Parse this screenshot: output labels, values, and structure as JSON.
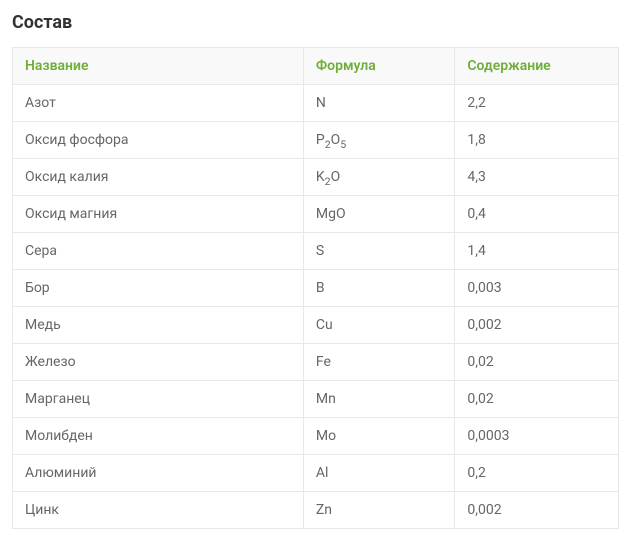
{
  "heading": "Состав",
  "table": {
    "columns": [
      {
        "label": "Название"
      },
      {
        "label": "Формула"
      },
      {
        "label": "Содержание"
      }
    ],
    "rows": [
      {
        "name": "Азот",
        "formula_html": "N",
        "content": "2,2"
      },
      {
        "name": "Оксид фосфора",
        "formula_html": "P<sub>2</sub>O<sub>5</sub>",
        "content": "1,8"
      },
      {
        "name": "Оксид калия",
        "formula_html": "K<sub>2</sub>O",
        "content": "4,3"
      },
      {
        "name": "Оксид магния",
        "formula_html": "MgO",
        "content": "0,4"
      },
      {
        "name": "Сера",
        "formula_html": "S",
        "content": "1,4"
      },
      {
        "name": "Бор",
        "formula_html": "B",
        "content": "0,003"
      },
      {
        "name": "Медь",
        "formula_html": "Cu",
        "content": "0,002"
      },
      {
        "name": "Железо",
        "formula_html": "Fe",
        "content": "0,02"
      },
      {
        "name": "Марганец",
        "formula_html": "Mn",
        "content": "0,02"
      },
      {
        "name": "Молибден",
        "formula_html": "Mo",
        "content": "0,0003"
      },
      {
        "name": "Алюминий",
        "formula_html": "Al",
        "content": "0,2"
      },
      {
        "name": "Цинк",
        "formula_html": "Zn",
        "content": "0,002"
      }
    ]
  },
  "styling": {
    "heading_color": "#333333",
    "header_bg": "#f9f9f9",
    "header_text_color": "#6fae3a",
    "border_color": "#e8e8e8",
    "cell_text_color": "#666666",
    "font_size_body": 14,
    "font_size_heading": 18,
    "col_widths_pct": [
      48,
      25,
      27
    ]
  }
}
